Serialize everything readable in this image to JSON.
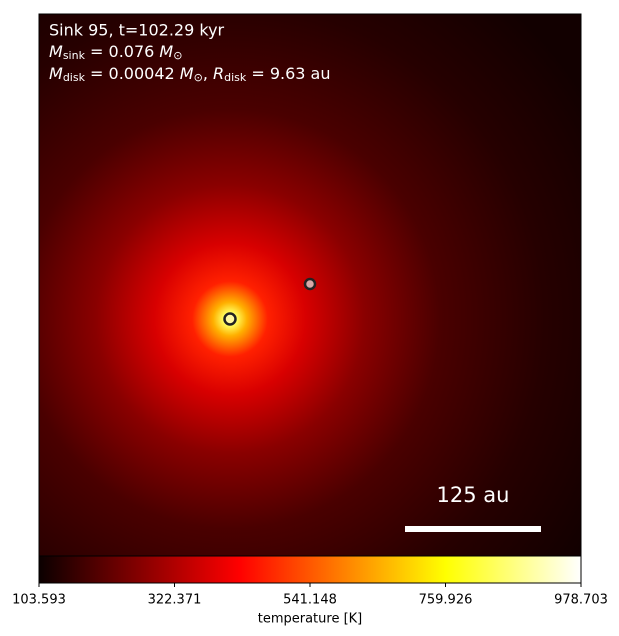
{
  "chart_data": {
    "type": "colormap",
    "annotation": {
      "line1": "Sink 95, t=102.29 kyr",
      "line2": {
        "symbol": "M",
        "subscript": "sink",
        "text": " = 0.076 ",
        "unit": "M",
        "unit_subscript": "⊙"
      },
      "line3": {
        "symbol": "M",
        "subscript": "disk",
        "text": " = 0.00042 ",
        "unit": "M",
        "unit_subscript": "⊙",
        "sep": ", ",
        "symbol2": "R",
        "subscript2": "disk",
        "text2": " = 9.63 au"
      }
    },
    "scale_bar": "125 au",
    "colormap": "hot",
    "colorbar_label": "temperature [K]",
    "clim": [
      103.593,
      978.703
    ],
    "cticks": [
      103.593,
      322.371,
      541.148,
      759.926,
      978.703
    ]
  }
}
